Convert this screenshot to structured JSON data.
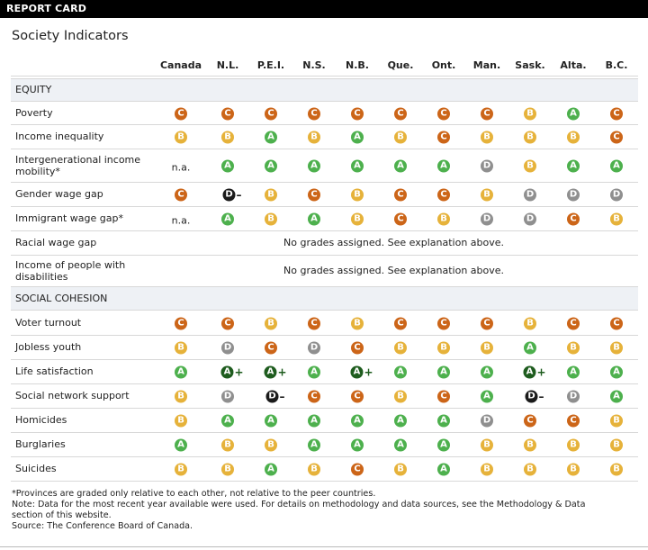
{
  "header": {
    "tag": "REPORT CARD",
    "title": "Society Indicators"
  },
  "columns": [
    "Canada",
    "N.L.",
    "P.E.I.",
    "N.S.",
    "N.B.",
    "Que.",
    "Ont.",
    "Man.",
    "Sask.",
    "Alta.",
    "B.C."
  ],
  "grade_colors": {
    "A": "#4db04d",
    "B": "#e6b23a",
    "C": "#cc6518",
    "D": "#8f8f8f",
    "D-": "#1a1a1a",
    "A+": "#1e5c1e"
  },
  "sections": [
    {
      "name": "EQUITY",
      "rows": [
        {
          "label": "Poverty",
          "grades": [
            "C",
            "C",
            "C",
            "C",
            "C",
            "C",
            "C",
            "C",
            "B",
            "A",
            "C"
          ]
        },
        {
          "label": "Income inequality",
          "grades": [
            "B",
            "B",
            "A",
            "B",
            "A",
            "B",
            "C",
            "B",
            "B",
            "B",
            "C"
          ]
        },
        {
          "label": "Intergenerational income mobility*",
          "grades": [
            "n.a.",
            "A",
            "A",
            "A",
            "A",
            "A",
            "A",
            "D",
            "B",
            "A",
            "A"
          ]
        },
        {
          "label": "Gender wage gap",
          "grades": [
            "C",
            "D-",
            "B",
            "C",
            "B",
            "C",
            "C",
            "B",
            "D",
            "D",
            "D"
          ]
        },
        {
          "label": "Immigrant wage gap*",
          "grades": [
            "n.a.",
            "A",
            "B",
            "A",
            "B",
            "C",
            "B",
            "D",
            "D",
            "C",
            "B"
          ]
        },
        {
          "label": "Racial wage gap",
          "grades": [],
          "note": "No grades assigned. See explanation above."
        },
        {
          "label": "Income of people with disabilities",
          "grades": [],
          "note": "No grades assigned. See explanation above."
        }
      ]
    },
    {
      "name": "SOCIAL COHESION",
      "rows": [
        {
          "label": "Voter turnout",
          "grades": [
            "C",
            "C",
            "B",
            "C",
            "B",
            "C",
            "C",
            "C",
            "B",
            "C",
            "C"
          ]
        },
        {
          "label": "Jobless youth",
          "grades": [
            "B",
            "D",
            "C",
            "D",
            "C",
            "B",
            "B",
            "B",
            "A",
            "B",
            "B"
          ]
        },
        {
          "label": "Life satisfaction",
          "grades": [
            "A",
            "A+",
            "A+",
            "A",
            "A+",
            "A",
            "A",
            "A",
            "A+",
            "A",
            "A"
          ]
        },
        {
          "label": "Social network support",
          "grades": [
            "B",
            "D",
            "D-",
            "C",
            "C",
            "B",
            "C",
            "A",
            "D-",
            "D",
            "A"
          ]
        },
        {
          "label": "Homicides",
          "grades": [
            "B",
            "A",
            "A",
            "A",
            "A",
            "A",
            "A",
            "D",
            "C",
            "C",
            "B"
          ]
        },
        {
          "label": "Burglaries",
          "grades": [
            "A",
            "B",
            "B",
            "A",
            "A",
            "A",
            "A",
            "B",
            "B",
            "B",
            "B"
          ]
        },
        {
          "label": "Suicides",
          "grades": [
            "B",
            "B",
            "A",
            "B",
            "C",
            "B",
            "A",
            "B",
            "B",
            "B",
            "B"
          ]
        }
      ]
    }
  ],
  "notes": [
    "*Provinces are graded only relative to each other, not relative to the peer countries.",
    "Note: Data for the most recent year available were used. For details on methodology and data sources, see the Methodology & Data",
    "section of this website.",
    "Source: The Conference Board of Canada."
  ]
}
